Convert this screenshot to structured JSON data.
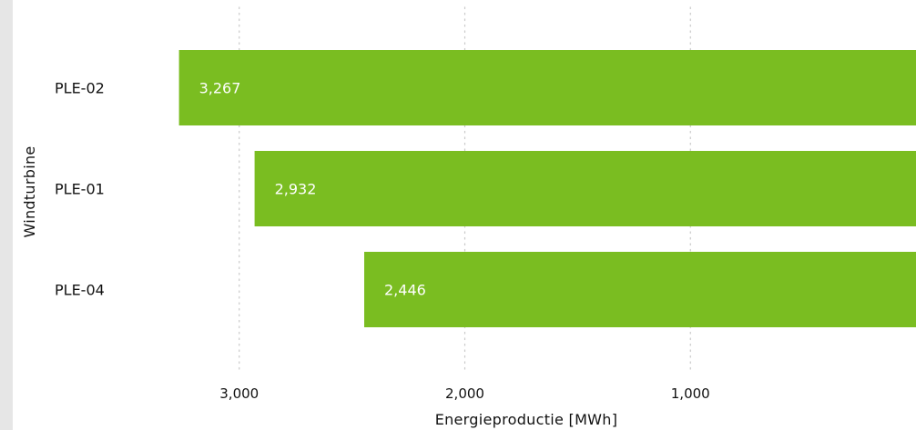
{
  "chart_data": {
    "type": "bar",
    "orientation": "horizontal",
    "x_axis_reversed": true,
    "categories": [
      "PLE-02",
      "PLE-01",
      "PLE-04"
    ],
    "values": [
      3267,
      2932,
      2446
    ],
    "value_labels": [
      "3,267",
      "2,932",
      "2,446"
    ],
    "xlabel": "Energieproductie [MWh]",
    "ylabel": "Windturbine",
    "xlim": [
      0,
      3330
    ],
    "x_ticks": [
      3000,
      2000,
      1000
    ],
    "x_tick_labels": [
      "3,000",
      "2,000",
      "1,000"
    ],
    "grid": "vertical dotted",
    "bar_color": "#7abd21"
  },
  "colors": {
    "bar": "#7abd21",
    "gridline": "#c8c8c8",
    "strip": "#e6e6e6"
  }
}
